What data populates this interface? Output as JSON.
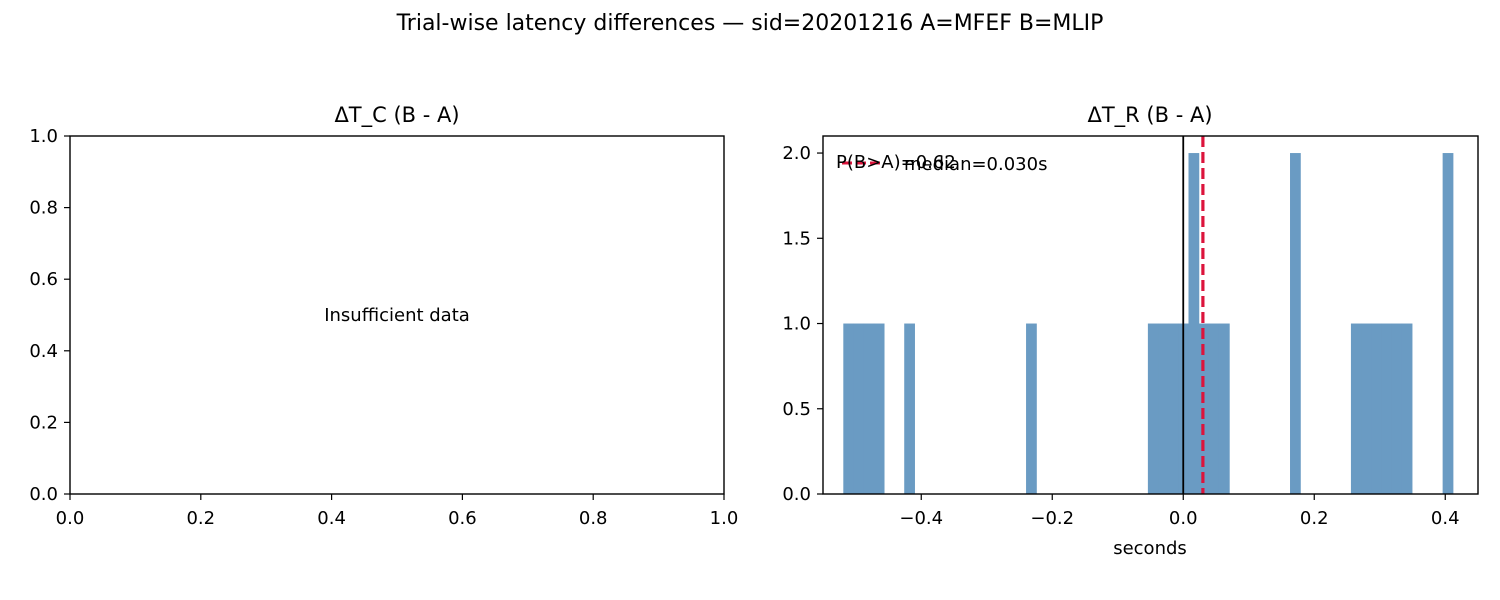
{
  "figure": {
    "suptitle": "Trial-wise latency differences — sid=20201216  A=MFEF  B=MLIP"
  },
  "chart_data": [
    {
      "type": "bar",
      "title": "ΔT_C (B - A)",
      "xlabel": "",
      "ylabel": "",
      "xlim": [
        0,
        1
      ],
      "ylim": [
        0,
        1
      ],
      "xticks": [
        "0.0",
        "0.2",
        "0.4",
        "0.6",
        "0.8",
        "1.0"
      ],
      "yticks": [
        "0.0",
        "0.2",
        "0.4",
        "0.6",
        "0.8",
        "1.0"
      ],
      "annotation": "Insufficient data",
      "values": []
    },
    {
      "type": "bar",
      "title": "ΔT_R (B - A)",
      "xlabel": "seconds",
      "ylabel": "",
      "xlim": [
        -0.55,
        0.45
      ],
      "ylim": [
        0,
        2.1
      ],
      "xticks": [
        "−0.4",
        "−0.2",
        "0.0",
        "0.2",
        "0.4"
      ],
      "xtick_values": [
        -0.4,
        -0.2,
        0.0,
        0.2,
        0.4
      ],
      "yticks": [
        "0.0",
        "0.5",
        "1.0",
        "1.5",
        "2.0"
      ],
      "ytick_values": [
        0,
        0.5,
        1.0,
        1.5,
        2.0
      ],
      "bin_width": 0.0155,
      "bins": [
        {
          "x": -0.519,
          "count": 1
        },
        {
          "x": -0.5035,
          "count": 1
        },
        {
          "x": -0.488,
          "count": 1
        },
        {
          "x": -0.4725,
          "count": 1
        },
        {
          "x": -0.426,
          "count": 1
        },
        {
          "x": -0.24,
          "count": 1
        },
        {
          "x": -0.054,
          "count": 1
        },
        {
          "x": -0.0385,
          "count": 1
        },
        {
          "x": -0.023,
          "count": 1
        },
        {
          "x": -0.0075,
          "count": 1
        },
        {
          "x": 0.008,
          "count": 2
        },
        {
          "x": 0.0235,
          "count": 1
        },
        {
          "x": 0.039,
          "count": 1
        },
        {
          "x": 0.0545,
          "count": 1
        },
        {
          "x": 0.163,
          "count": 2
        },
        {
          "x": 0.256,
          "count": 1
        },
        {
          "x": 0.2715,
          "count": 1
        },
        {
          "x": 0.287,
          "count": 1
        },
        {
          "x": 0.3025,
          "count": 1
        },
        {
          "x": 0.318,
          "count": 1
        },
        {
          "x": 0.3335,
          "count": 1
        },
        {
          "x": 0.396,
          "count": 2
        }
      ],
      "zero_line": 0.0,
      "median": 0.03,
      "legend_label": "median=0.030s",
      "annotation": "P(B>A)=0.62",
      "colors": {
        "bars": "#6a9bc3",
        "median": "#dc143c",
        "zero": "#000000"
      }
    }
  ]
}
